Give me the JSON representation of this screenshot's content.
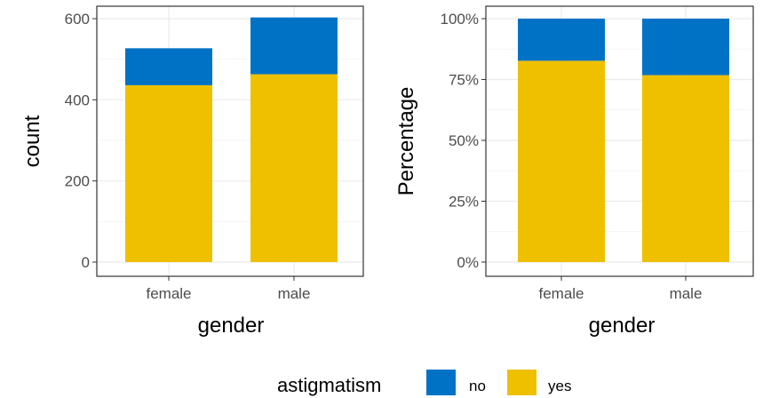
{
  "chart_data": [
    {
      "type": "bar",
      "stacked": true,
      "categories": [
        "female",
        "male"
      ],
      "series": [
        {
          "name": "yes",
          "values": [
            436,
            463
          ]
        },
        {
          "name": "no",
          "values": [
            91,
            140
          ]
        }
      ],
      "xlabel": "gender",
      "ylabel": "count",
      "ylim": [
        0,
        600
      ],
      "yticks": [
        "0",
        "200",
        "400",
        "600"
      ],
      "grid": true
    },
    {
      "type": "bar",
      "stacked": true,
      "normalized": true,
      "categories": [
        "female",
        "male"
      ],
      "series": [
        {
          "name": "yes",
          "values": [
            82.7,
            76.8
          ]
        },
        {
          "name": "no",
          "values": [
            17.3,
            23.2
          ]
        }
      ],
      "xlabel": "gender",
      "ylabel": "Percentage",
      "ylim": [
        0,
        100
      ],
      "yticks": [
        "0%",
        "25%",
        "50%",
        "75%",
        "100%"
      ],
      "grid": true
    }
  ],
  "legend": {
    "title": "astigmatism",
    "position": "bottom",
    "items": [
      {
        "label": "no",
        "color": "#0072C5"
      },
      {
        "label": "yes",
        "color": "#EEC000"
      }
    ]
  },
  "colors": {
    "no": "#0072C5",
    "yes": "#EEC000",
    "grid_major": "#ebebeb",
    "grid_minor": "#f4f4f4",
    "border": "#333333"
  }
}
